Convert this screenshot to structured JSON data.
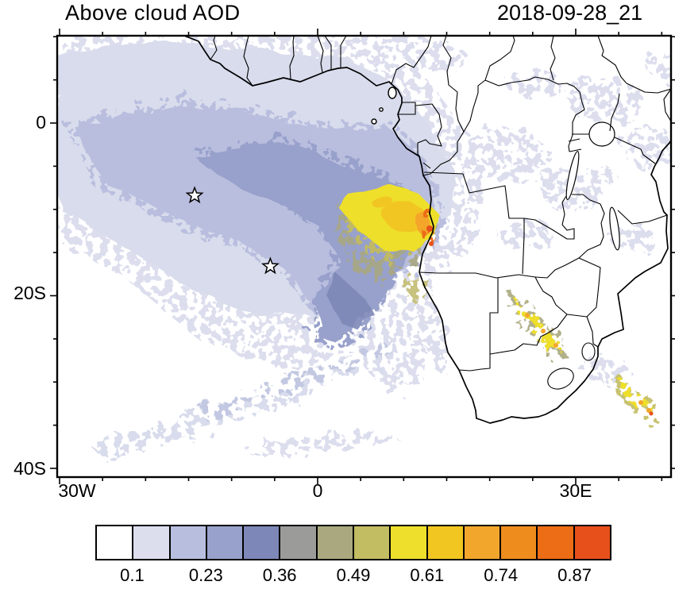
{
  "title": "Above cloud AOD",
  "timestamp": "2018-09-28_21",
  "background": "#ffffff",
  "frame_color": "#000000",
  "axes": {
    "x": {
      "labels": [
        "30W",
        "0",
        "30E"
      ],
      "major": [
        -30,
        0,
        30
      ],
      "minor": [
        -25,
        -20,
        -15,
        -10,
        -5,
        5,
        10,
        15,
        20,
        25,
        35,
        40
      ]
    },
    "y": {
      "labels": [
        "0",
        "20S",
        "40S"
      ],
      "major": [
        0,
        -20,
        -40
      ],
      "minor": [
        10,
        5,
        -5,
        -10,
        -15,
        -25,
        -30,
        -35
      ]
    }
  },
  "colorbar": {
    "colors": [
      "#ffffff",
      "#dcdeee",
      "#b8bede",
      "#98a1cb",
      "#7e88b8",
      "#9b9c9a",
      "#a9a87e",
      "#c2bc62",
      "#eedf2c",
      "#f2c620",
      "#f3a62c",
      "#ef8c1e",
      "#ec6d15",
      "#e8501b"
    ],
    "tick_labels": [
      "0.1",
      "0.23",
      "0.36",
      "0.49",
      "0.61",
      "0.74",
      "0.87"
    ]
  },
  "chart_data": {
    "type": "heatmap",
    "title": "Above cloud AOD",
    "timestamp": "2018-09-28_21",
    "variable": "above-cloud aerosol optical depth over southeast Atlantic and southern Africa",
    "extent": {
      "lon": [
        -30,
        41
      ],
      "lat": [
        -41,
        10
      ]
    },
    "x_tick_labels": [
      "30W",
      "0",
      "30E"
    ],
    "y_tick_labels": [
      "0",
      "20S",
      "40S"
    ],
    "colorbar_tick_values": [
      0.1,
      0.23,
      0.36,
      0.49,
      0.61,
      0.74,
      0.87
    ],
    "legend_position": "bottom",
    "grid": false,
    "markers": [
      {
        "type": "star",
        "lon": -14.3,
        "lat": -8.4
      },
      {
        "type": "star",
        "lon": -5.5,
        "lat": -16.6
      }
    ],
    "aod_regions": [
      {
        "description": "broad mottled low-AOD field over tropical Atlantic",
        "approx_lon": [
          -30,
          10
        ],
        "approx_lat": [
          -20,
          10
        ],
        "aod": "0.1-0.23"
      },
      {
        "description": "moderate AOD band near equator curving into hook off Angola",
        "approx_lon": [
          -15,
          8
        ],
        "approx_lat": [
          -18,
          -1
        ],
        "aod": "0.23-0.36"
      },
      {
        "description": "dark comma/hook of elevated AOD southwest of plume",
        "approx_lon": [
          -2,
          8
        ],
        "approx_lat": [
          -20,
          -5
        ],
        "aod": "0.36-0.49"
      },
      {
        "description": "high-AOD smoke plume core off Angolan coast",
        "approx_lon": [
          3,
          13
        ],
        "approx_lat": [
          -14,
          -6
        ],
        "aod": "0.49-0.74"
      },
      {
        "description": "peak AOD spots at Angolan coastline",
        "approx_lon": [
          11,
          14
        ],
        "approx_lat": [
          -13,
          -8
        ],
        "aod": "0.74-1.0"
      },
      {
        "description": "scattered smoke streaks over Zambia, Zimbabwe, Mozambique coast",
        "approx_lon": [
          25,
          36
        ],
        "approx_lat": [
          -31,
          -12
        ],
        "aod": "0.4-0.9"
      },
      {
        "description": "thin diagonal aerosol band across central South Atlantic",
        "approx_lon": [
          -28,
          5
        ],
        "approx_lat": [
          -36,
          -22
        ],
        "aod": "0.1-0.2"
      }
    ]
  }
}
